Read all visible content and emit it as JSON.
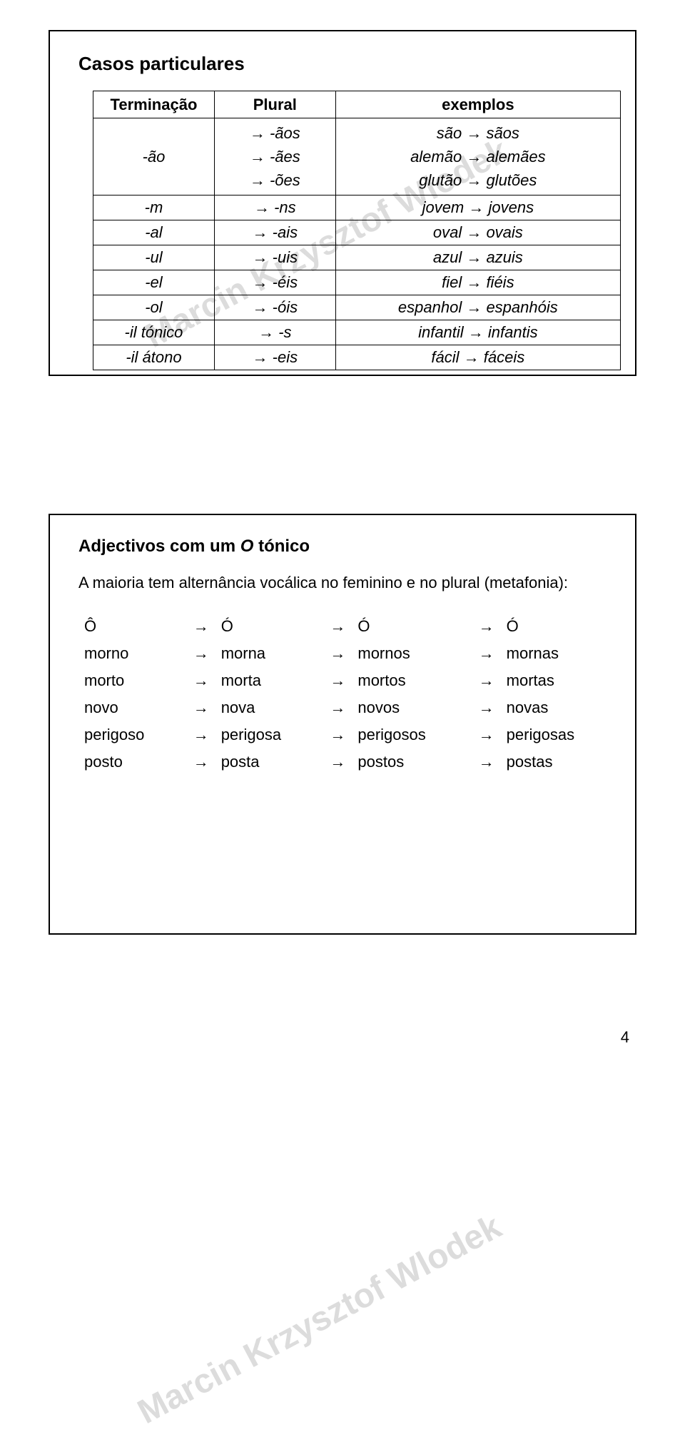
{
  "watermark": "Marcin Krzysztof Wlodek",
  "pageNumber": "4",
  "panel1": {
    "title": "Casos particulares",
    "headers": [
      "Terminação",
      "Plural",
      "exemplos"
    ],
    "rows": [
      {
        "term": "-ão",
        "plural": [
          "→ -ãos",
          "→ -ães",
          "→ -ões"
        ],
        "examples": [
          "são → sãos",
          "alemão → alemães",
          "glutão → glutões"
        ]
      },
      {
        "term": "-m",
        "plural": "→ -ns",
        "examples": "jovem → jovens"
      },
      {
        "term": "-al",
        "plural": "→ -ais",
        "examples": "oval → ovais"
      },
      {
        "term": "-ul",
        "plural": "→ -uis",
        "examples": "azul → azuis"
      },
      {
        "term": "-el",
        "plural": "→ -éis",
        "examples": "fiel → fiéis"
      },
      {
        "term": "-ol",
        "plural": "→ -óis",
        "examples": "espanhol → espanhóis"
      },
      {
        "term": "-il tónico",
        "plural": "→ -s",
        "examples": "infantil → infantis"
      },
      {
        "term": "-il átono",
        "plural": "→ -eis",
        "examples": "fácil → fáceis"
      }
    ]
  },
  "panel2": {
    "titlePrefix": "Adjectivos com um ",
    "titleItalic": "O",
    "titleSuffix": " tónico",
    "intro": "A maioria tem alternância vocálica no feminino e no plural (metafonia):",
    "accentRow": [
      "Ô",
      "Ó",
      "Ó",
      "Ó"
    ],
    "arrow": "→",
    "wordRows": [
      [
        "morno",
        "morna",
        "mornos",
        "mornas"
      ],
      [
        "morto",
        "morta",
        "mortos",
        "mortas"
      ],
      [
        "novo",
        "nova",
        "novos",
        "novas"
      ],
      [
        "perigoso",
        "perigosa",
        "perigosos",
        "perigosas"
      ],
      [
        "posto",
        "posta",
        "postos",
        "postas"
      ]
    ]
  }
}
